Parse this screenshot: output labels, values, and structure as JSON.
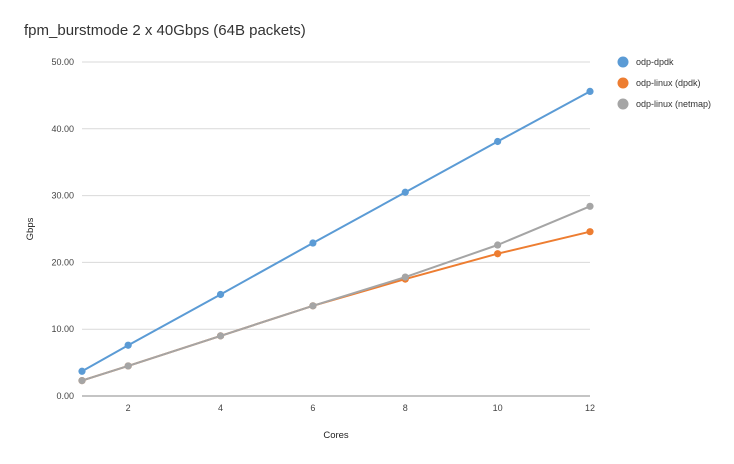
{
  "chart_data": {
    "type": "line",
    "title": "fpm_burstmode 2 x 40Gbps (64B packets)",
    "xlabel": "Cores",
    "ylabel": "Gbps",
    "x": [
      1,
      2,
      4,
      6,
      8,
      10,
      12
    ],
    "x_ticks": [
      2,
      4,
      6,
      8,
      10,
      12
    ],
    "xlim": [
      1,
      12
    ],
    "ylim": [
      0,
      50
    ],
    "y_ticks": [
      "0.00",
      "10.00",
      "20.00",
      "30.00",
      "40.00",
      "50.00"
    ],
    "grid": true,
    "legend_position": "right",
    "series": [
      {
        "name": "odp-dpdk",
        "color": "#5b9bd5",
        "values": [
          3.7,
          7.6,
          15.2,
          22.9,
          30.5,
          38.1,
          45.6
        ]
      },
      {
        "name": "odp-linux (dpdk)",
        "color": "#ed7d31",
        "values": [
          2.3,
          4.5,
          9.0,
          13.5,
          17.5,
          21.3,
          24.6
        ]
      },
      {
        "name": "odp-linux (netmap)",
        "color": "#a5a5a5",
        "values": [
          2.3,
          4.5,
          9.0,
          13.5,
          17.8,
          22.6,
          28.4
        ]
      }
    ]
  }
}
